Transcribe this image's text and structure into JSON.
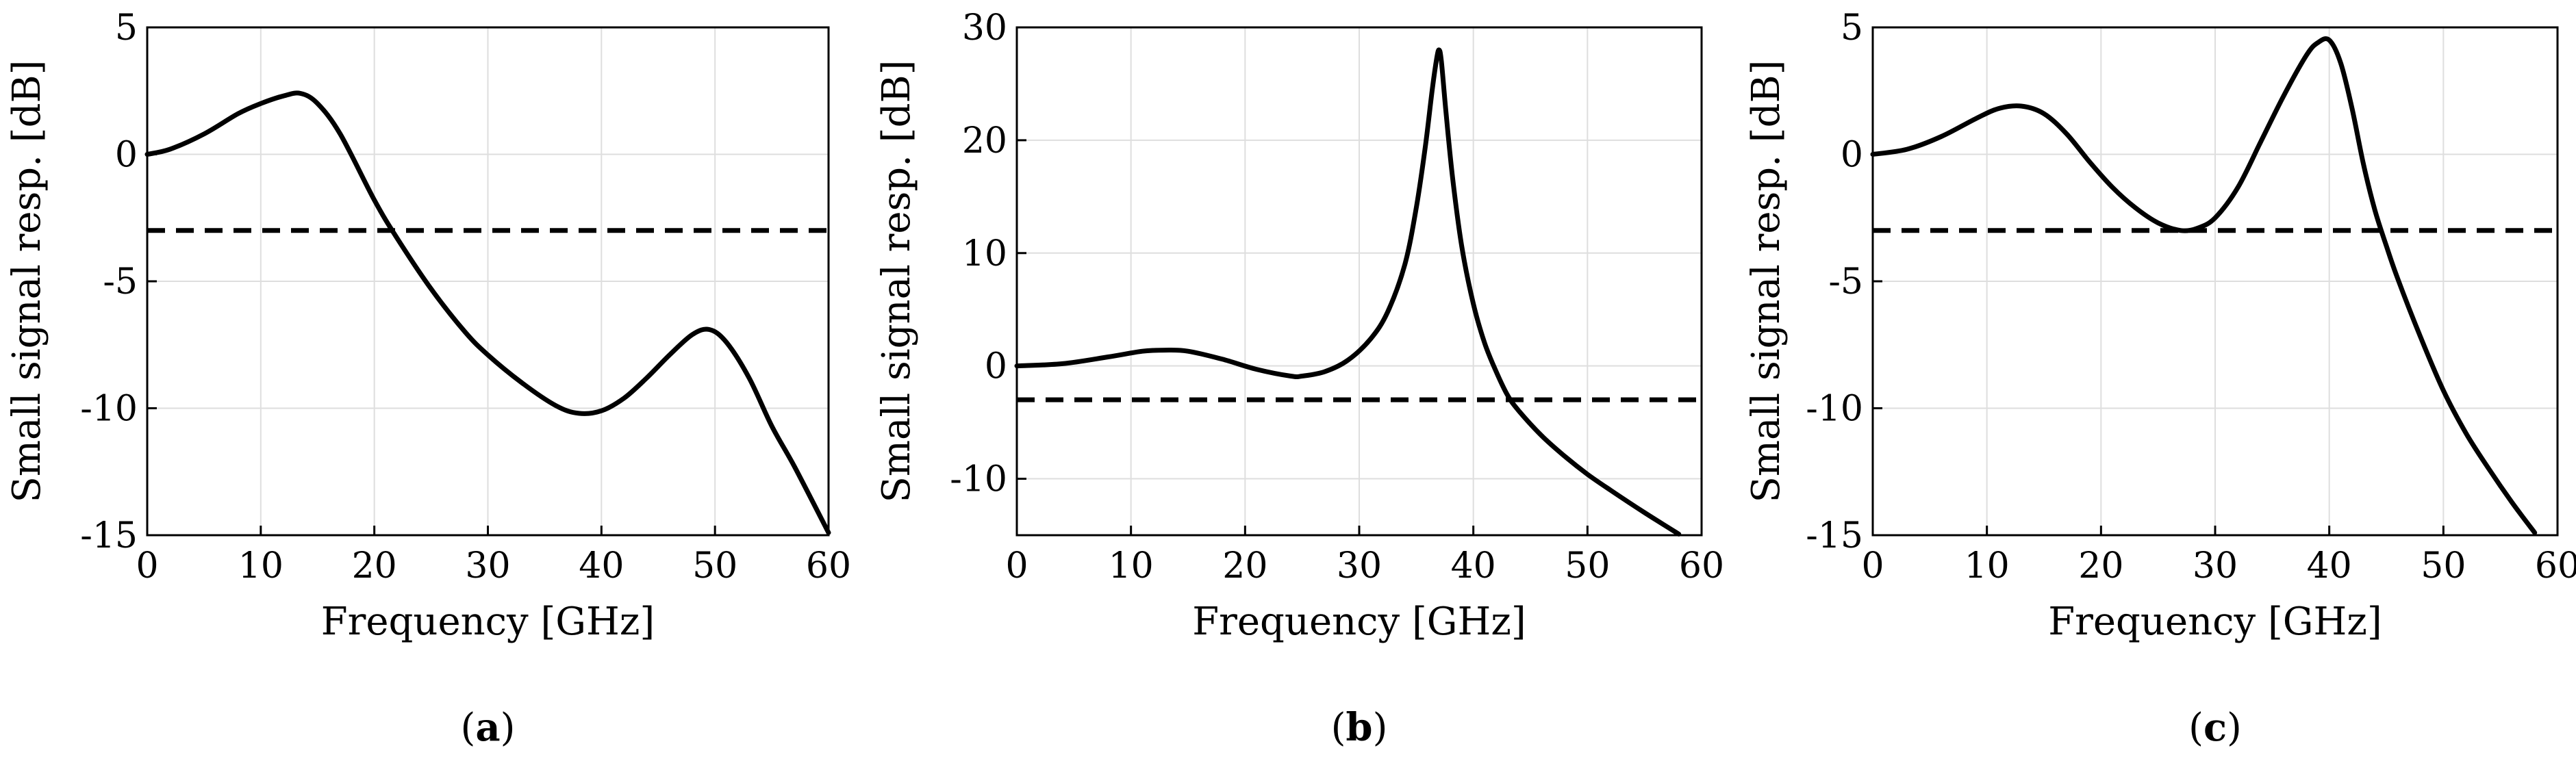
{
  "chart_data": [
    {
      "type": "line",
      "panel": "a",
      "caption": {
        "open": "(",
        "letter": "a",
        "close": ")"
      },
      "xlabel": "Frequency [GHz]",
      "ylabel": "Small signal resp. [dB]",
      "xlim": [
        0,
        60
      ],
      "ylim": [
        -15,
        5
      ],
      "xticks": [
        0,
        10,
        20,
        30,
        40,
        50,
        60
      ],
      "xtick_labels": [
        "0",
        "10",
        "20",
        "30",
        "40",
        "50",
        "60"
      ],
      "yticks": [
        -15,
        -10,
        -5,
        0,
        5
      ],
      "ytick_labels": [
        "-15",
        "-10",
        "-5",
        "0",
        "5"
      ],
      "grid": true,
      "reference_line": {
        "y": -3,
        "style": "dashed"
      },
      "series": [
        {
          "name": "response",
          "x": [
            0,
            2,
            5,
            8,
            10,
            12,
            13.5,
            15,
            17,
            20,
            22,
            25,
            28,
            30,
            33,
            36,
            38,
            40,
            42,
            44,
            46,
            48,
            49.5,
            51,
            53,
            55,
            57,
            60
          ],
          "y": [
            0,
            0.2,
            0.8,
            1.6,
            2.0,
            2.3,
            2.4,
            2.0,
            0.8,
            -1.8,
            -3.3,
            -5.3,
            -7.0,
            -7.9,
            -9.0,
            -9.9,
            -10.2,
            -10.1,
            -9.6,
            -8.8,
            -7.9,
            -7.1,
            -6.9,
            -7.4,
            -8.8,
            -10.7,
            -12.3,
            -14.9
          ]
        }
      ]
    },
    {
      "type": "line",
      "panel": "b",
      "caption": {
        "open": "(",
        "letter": "b",
        "close": ")"
      },
      "xlabel": "Frequency [GHz]",
      "ylabel": "Small signal resp. [dB]",
      "xlim": [
        0,
        60
      ],
      "ylim": [
        -15,
        30
      ],
      "xticks": [
        0,
        10,
        20,
        30,
        40,
        50,
        60
      ],
      "xtick_labels": [
        "0",
        "10",
        "20",
        "30",
        "40",
        "50",
        "60"
      ],
      "yticks": [
        -10,
        0,
        10,
        20,
        30
      ],
      "ytick_labels": [
        "-10",
        "0",
        "10",
        "20",
        "30"
      ],
      "grid": true,
      "reference_line": {
        "y": -3,
        "style": "dashed"
      },
      "series": [
        {
          "name": "response",
          "x": [
            0,
            4,
            8,
            11,
            13,
            15,
            18,
            21,
            24,
            25,
            27,
            29,
            31,
            32.5,
            34,
            35,
            35.8,
            36.4,
            36.8,
            37,
            37.2,
            37.6,
            38.2,
            39,
            40,
            41,
            42,
            43,
            44,
            46,
            48,
            50,
            52,
            55,
            58
          ],
          "y": [
            0,
            0.2,
            0.8,
            1.3,
            1.4,
            1.3,
            0.6,
            -0.3,
            -0.9,
            -0.9,
            -0.5,
            0.5,
            2.4,
            4.8,
            9.0,
            14.0,
            19.5,
            24.5,
            27.3,
            28.0,
            27.0,
            22.5,
            16.5,
            10.5,
            5.5,
            2.0,
            -0.5,
            -2.6,
            -4.0,
            -6.2,
            -8.0,
            -9.6,
            -11.0,
            -13.0,
            -14.9
          ]
        }
      ]
    },
    {
      "type": "line",
      "panel": "c",
      "caption": {
        "open": "(",
        "letter": "c",
        "close": ")"
      },
      "xlabel": "Frequency [GHz]",
      "ylabel": "Small signal resp. [dB]",
      "xlim": [
        0,
        60
      ],
      "ylim": [
        -15,
        5
      ],
      "xticks": [
        0,
        10,
        20,
        30,
        40,
        50,
        60
      ],
      "xtick_labels": [
        "0",
        "10",
        "20",
        "30",
        "40",
        "50",
        "60"
      ],
      "yticks": [
        -15,
        -10,
        -5,
        0,
        5
      ],
      "ytick_labels": [
        "-15",
        "-10",
        "-5",
        "0",
        "5"
      ],
      "grid": true,
      "reference_line": {
        "y": -3,
        "style": "dashed"
      },
      "series": [
        {
          "name": "response",
          "x": [
            0,
            3,
            6,
            9,
            11,
            13,
            15,
            17,
            19,
            21,
            23,
            25,
            27,
            28.5,
            30,
            32,
            34,
            36,
            38,
            39,
            40,
            41,
            42,
            43,
            44,
            45,
            46,
            48,
            50,
            52,
            54,
            56,
            58
          ],
          "y": [
            0,
            0.2,
            0.7,
            1.4,
            1.8,
            1.9,
            1.6,
            0.8,
            -0.3,
            -1.3,
            -2.1,
            -2.7,
            -3.0,
            -2.9,
            -2.5,
            -1.3,
            0.5,
            2.3,
            3.9,
            4.4,
            4.5,
            3.6,
            1.8,
            -0.4,
            -2.2,
            -3.6,
            -4.9,
            -7.2,
            -9.3,
            -11.0,
            -12.4,
            -13.7,
            -14.9
          ]
        }
      ]
    }
  ]
}
